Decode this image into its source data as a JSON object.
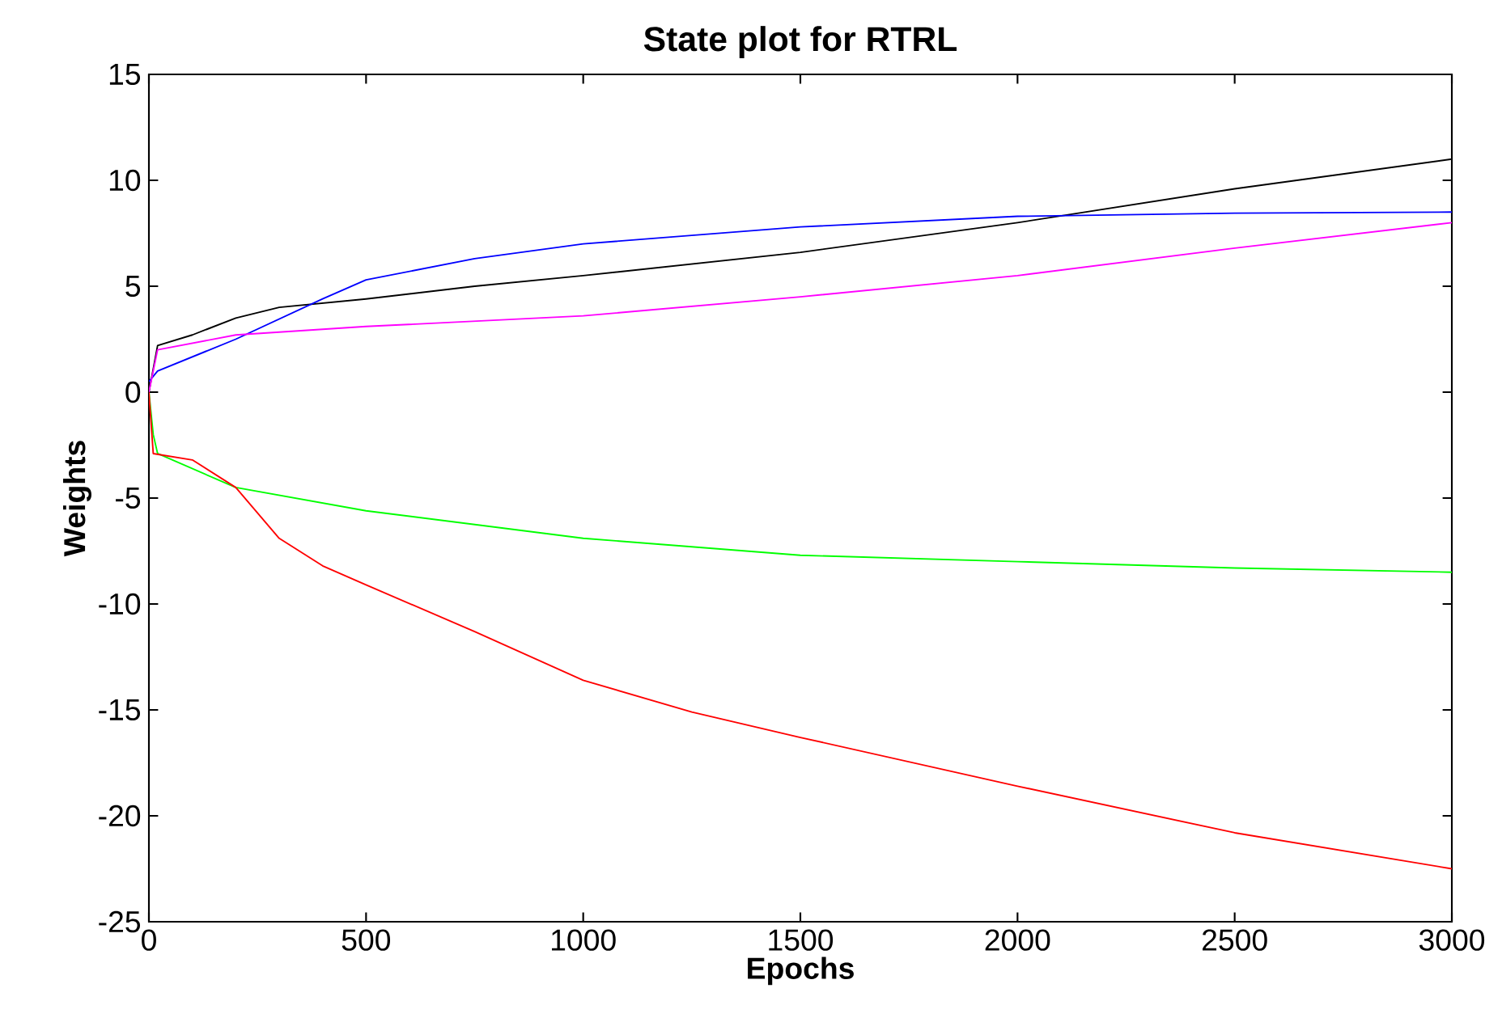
{
  "chart_data": {
    "type": "line",
    "title": "State plot for RTRL",
    "xlabel": "Epochs",
    "ylabel": "Weights",
    "xlim": [
      0,
      3000
    ],
    "ylim": [
      -25,
      15
    ],
    "xticks": [
      0,
      500,
      1000,
      1500,
      2000,
      2500,
      3000
    ],
    "yticks": [
      -25,
      -20,
      -15,
      -10,
      -5,
      0,
      5,
      10,
      15
    ],
    "line_style": "solid",
    "marker": "none",
    "series": [
      {
        "color": "#000000",
        "x": [
          0,
          20,
          100,
          200,
          300,
          500,
          750,
          1000,
          1500,
          2000,
          2500,
          3000
        ],
        "values": [
          0,
          2.2,
          2.7,
          3.5,
          4.0,
          4.4,
          5.0,
          5.5,
          6.6,
          8.0,
          9.6,
          11.0
        ]
      },
      {
        "color": "#0000ff",
        "x": [
          0,
          20,
          200,
          400,
          500,
          750,
          1000,
          1500,
          2000,
          2500,
          3000
        ],
        "values": [
          0.5,
          1.0,
          2.5,
          4.4,
          5.3,
          6.3,
          7.0,
          7.8,
          8.3,
          8.45,
          8.5
        ]
      },
      {
        "color": "#ff00ff",
        "x": [
          0,
          20,
          200,
          500,
          1000,
          1500,
          2000,
          2500,
          3000
        ],
        "values": [
          0,
          2.0,
          2.7,
          3.1,
          3.6,
          4.5,
          5.5,
          6.8,
          8.0
        ]
      },
      {
        "color": "#00ff00",
        "x": [
          0,
          10,
          20,
          200,
          500,
          1000,
          1500,
          2000,
          2500,
          3000
        ],
        "values": [
          0,
          -2,
          -2.9,
          -4.5,
          -5.6,
          -6.9,
          -7.7,
          -8.0,
          -8.3,
          -8.5
        ]
      },
      {
        "color": "#ff0000",
        "x": [
          0,
          10,
          100,
          200,
          300,
          400,
          500,
          750,
          1000,
          1250,
          1500,
          2000,
          2500,
          3000
        ],
        "values": [
          0,
          -2.9,
          -3.2,
          -4.5,
          -6.9,
          -8.2,
          -9.1,
          -11.3,
          -13.6,
          -15.1,
          -16.3,
          -18.6,
          -20.8,
          -22.5
        ]
      }
    ]
  }
}
